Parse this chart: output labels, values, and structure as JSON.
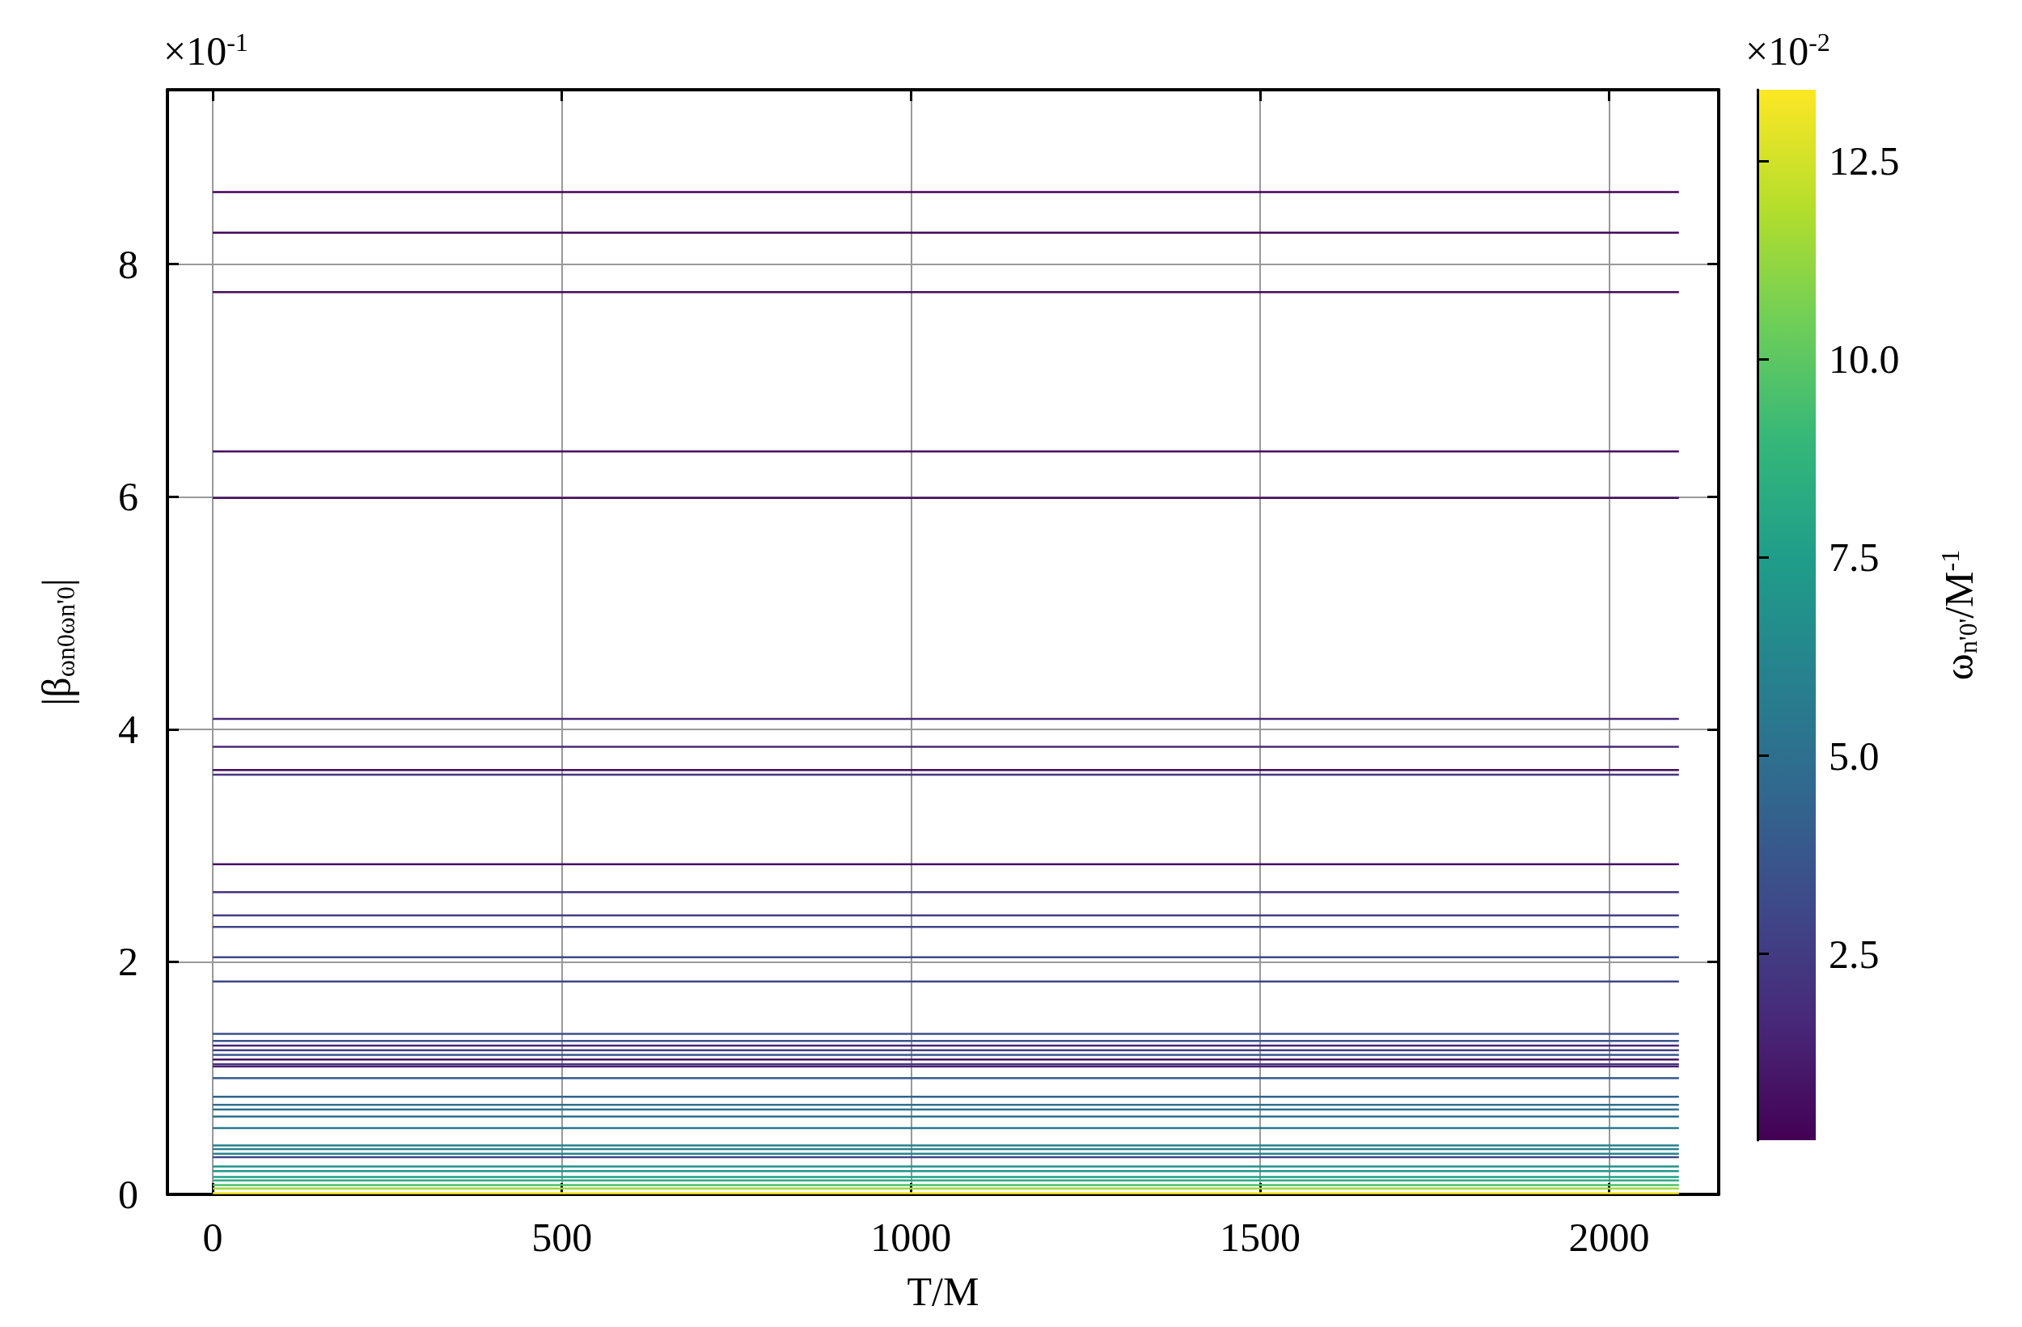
{
  "chart_data": {
    "type": "line",
    "xlabel": "T/M",
    "ylabel": "|β$_{ωn0ωn'0}$|",
    "clabel": "ω$_{n'0'}$/M$^{-1}$",
    "annotations": [
      "×10$^{-1}$",
      "×10$^{-2}$"
    ],
    "x": [
      0,
      2100
    ],
    "xlim": [
      -65,
      2157
    ],
    "xticks": [
      0,
      500,
      1000,
      1500,
      2000
    ],
    "ylim": [
      0,
      9.5
    ],
    "yticks": [
      0,
      2,
      4,
      6,
      8
    ],
    "clim": [
      0.15,
      13.4
    ],
    "cticks": [
      2.5,
      {
        "value": 5,
        "label": "5.0"
      },
      7.5,
      {
        "value": 10,
        "label": "10.0"
      },
      12.5
    ],
    "grid": true,
    "marker": "none",
    "line_style": "solid",
    "series": [
      {
        "color": "#440154",
        "values": [
          8.62,
          8.62
        ]
      },
      {
        "color": "#45075a",
        "values": [
          8.27,
          8.27
        ]
      },
      {
        "color": "#460b5e",
        "values": [
          7.76,
          7.76
        ]
      },
      {
        "color": "#46085c",
        "values": [
          6.39,
          6.39
        ]
      },
      {
        "color": "#470e61",
        "values": [
          5.99,
          5.99
        ]
      },
      {
        "color": "#482878",
        "values": [
          4.09,
          4.09
        ]
      },
      {
        "color": "#472a7a",
        "values": [
          3.85,
          3.85
        ]
      },
      {
        "color": "#46085c",
        "values": [
          3.65,
          3.65
        ]
      },
      {
        "color": "#463480",
        "values": [
          3.61,
          3.61
        ]
      },
      {
        "color": "#471063",
        "values": [
          2.84,
          2.84
        ]
      },
      {
        "color": "#46337e",
        "values": [
          2.6,
          2.6
        ]
      },
      {
        "color": "#433d84",
        "values": [
          2.4,
          2.4
        ]
      },
      {
        "color": "#404688",
        "values": [
          2.3,
          2.3
        ]
      },
      {
        "color": "#3e4989",
        "values": [
          2.04,
          2.04
        ]
      },
      {
        "color": "#3f4788",
        "values": [
          1.83,
          1.83
        ]
      },
      {
        "color": "#3b528b",
        "values": [
          1.38,
          1.38
        ]
      },
      {
        "color": "#3a548c",
        "values": [
          1.32,
          1.32
        ]
      },
      {
        "color": "#482475",
        "values": [
          1.28,
          1.28
        ]
      },
      {
        "color": "#433e85",
        "values": [
          1.24,
          1.24
        ]
      },
      {
        "color": "#38588c",
        "values": [
          1.2,
          1.2
        ]
      },
      {
        "color": "#471365",
        "values": [
          1.16,
          1.16
        ]
      },
      {
        "color": "#453781",
        "values": [
          1.12,
          1.12
        ]
      },
      {
        "color": "#481f70",
        "values": [
          1.1,
          1.1
        ]
      },
      {
        "color": "#365c8d",
        "values": [
          1.0,
          1.0
        ]
      },
      {
        "color": "#33638d",
        "values": [
          0.84,
          0.84
        ]
      },
      {
        "color": "#2e6e8e",
        "values": [
          0.77,
          0.77
        ]
      },
      {
        "color": "#2d708e",
        "values": [
          0.73,
          0.73
        ]
      },
      {
        "color": "#2c728e",
        "values": [
          0.67,
          0.67
        ]
      },
      {
        "color": "#2a788e",
        "values": [
          0.57,
          0.57
        ]
      },
      {
        "color": "#277f8e",
        "values": [
          0.42,
          0.42
        ]
      },
      {
        "color": "#26828e",
        "values": [
          0.39,
          0.39
        ]
      },
      {
        "color": "#25848e",
        "values": [
          0.35,
          0.35
        ]
      },
      {
        "color": "#3e4989",
        "values": [
          0.32,
          0.32
        ]
      },
      {
        "color": "#21918c",
        "values": [
          0.24,
          0.24
        ]
      },
      {
        "color": "#1f968b",
        "values": [
          0.2,
          0.2
        ]
      },
      {
        "color": "#1fa088",
        "values": [
          0.15,
          0.15
        ]
      },
      {
        "color": "#28ae80",
        "values": [
          0.12,
          0.12
        ]
      },
      {
        "color": "#4ac16d",
        "values": [
          0.08,
          0.08
        ]
      },
      {
        "color": "#a0da39",
        "values": [
          0.05,
          0.05
        ]
      },
      {
        "color": "#fde725",
        "values": [
          0.01,
          0.01
        ]
      }
    ]
  }
}
